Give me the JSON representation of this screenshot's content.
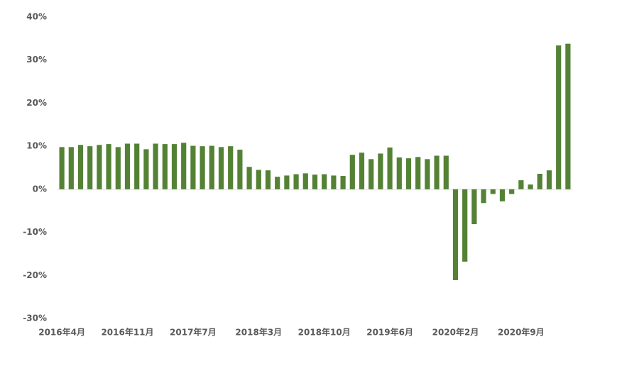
{
  "chart_data": {
    "type": "bar",
    "color": "#548235",
    "categories": [
      "2016年4月",
      null,
      null,
      null,
      null,
      null,
      null,
      "2016年11月",
      null,
      null,
      null,
      null,
      null,
      null,
      "2017年7月",
      null,
      null,
      null,
      null,
      null,
      null,
      "2018年3月",
      null,
      null,
      null,
      null,
      null,
      null,
      "2018年10月",
      null,
      null,
      null,
      null,
      null,
      null,
      "2019年6月",
      null,
      null,
      null,
      null,
      null,
      null,
      "2020年2月",
      null,
      null,
      null,
      null,
      null,
      null,
      "2020年9月",
      null,
      null,
      null,
      null,
      null
    ],
    "values": [
      9.8,
      9.8,
      10.3,
      10.0,
      10.3,
      10.5,
      9.8,
      10.6,
      10.6,
      9.3,
      10.6,
      10.5,
      10.5,
      10.8,
      10.1,
      10.0,
      10.1,
      9.8,
      10.0,
      9.2,
      5.2,
      4.5,
      4.4,
      2.9,
      3.2,
      3.5,
      3.7,
      3.4,
      3.5,
      3.2,
      3.1,
      8.0,
      8.5,
      7.0,
      8.3,
      9.7,
      7.4,
      7.2,
      7.5,
      7.0,
      7.8,
      7.8,
      -21.1,
      -16.8,
      -8.1,
      -3.2,
      -1.1,
      -2.8,
      -1.1,
      2.1,
      1.1,
      3.6,
      4.4,
      33.4,
      33.8
    ],
    "ylim": [
      -30,
      40
    ],
    "yticks": [
      {
        "value": -30,
        "label": "-30%"
      },
      {
        "value": -20,
        "label": "-20%"
      },
      {
        "value": -10,
        "label": "-10%"
      },
      {
        "value": 0,
        "label": "0%"
      },
      {
        "value": 10,
        "label": "10%"
      },
      {
        "value": 20,
        "label": "20%"
      },
      {
        "value": 30,
        "label": "30%"
      },
      {
        "value": 40,
        "label": "40%"
      }
    ],
    "grid": false
  }
}
